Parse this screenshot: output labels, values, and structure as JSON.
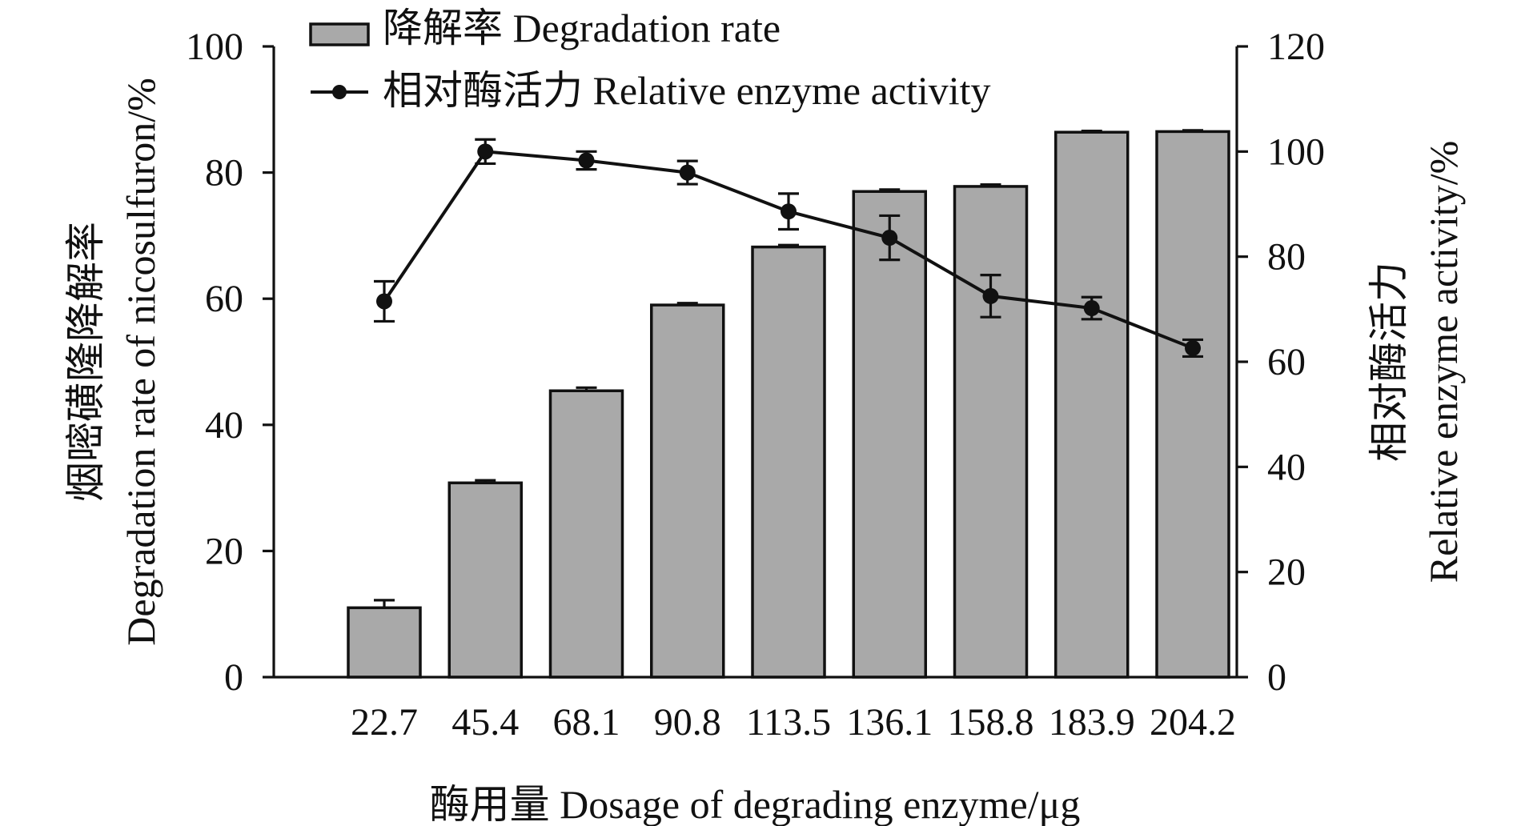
{
  "chart_data": {
    "type": "bar+line",
    "legend_position": "top-left",
    "grid": false,
    "legend": {
      "bar_label": "降解率 Degradation rate",
      "line_label": "相对酶活力 Relative enzyme activity"
    },
    "xlabel": "酶用量 Dosage of degrading enzyme/μg",
    "ylabel_left_line1": "烟嘧磺隆降解率",
    "ylabel_left_line2": "Degradation rate of nicosulfuron/%",
    "ylabel_right_line1": "相对酶活力",
    "ylabel_right_line2": "Relative enzyme activity/%",
    "categories": [
      "22.7",
      "45.4",
      "68.1",
      "90.8",
      "113.5",
      "136.1",
      "158.8",
      "183.9",
      "204.2"
    ],
    "left_axis": {
      "ylim": [
        0,
        100
      ],
      "ticks": [
        "0",
        "20",
        "40",
        "60",
        "80",
        "100"
      ]
    },
    "right_axis": {
      "ylim": [
        0,
        120
      ],
      "ticks": [
        "0",
        "20",
        "40",
        "60",
        "80",
        "100",
        "120"
      ]
    },
    "series": [
      {
        "name": "降解率 Degradation rate",
        "kind": "bar",
        "axis": "left",
        "color": "#a9a9a9",
        "values": [
          11.0,
          30.8,
          45.4,
          59.0,
          68.2,
          77.0,
          77.8,
          86.4,
          86.5
        ],
        "errors": [
          1.2,
          0.4,
          0.5,
          0.3,
          0.3,
          0.3,
          0.3,
          0.2,
          0.2
        ]
      },
      {
        "name": "相对酶活力 Relative enzyme activity",
        "kind": "line",
        "axis": "right",
        "color": "#111111",
        "values": [
          71.5,
          100.0,
          98.3,
          96.0,
          88.6,
          83.6,
          72.5,
          70.2,
          62.6
        ],
        "errors": [
          3.8,
          2.3,
          1.7,
          2.2,
          3.4,
          4.2,
          4.0,
          2.1,
          1.6
        ]
      }
    ]
  }
}
